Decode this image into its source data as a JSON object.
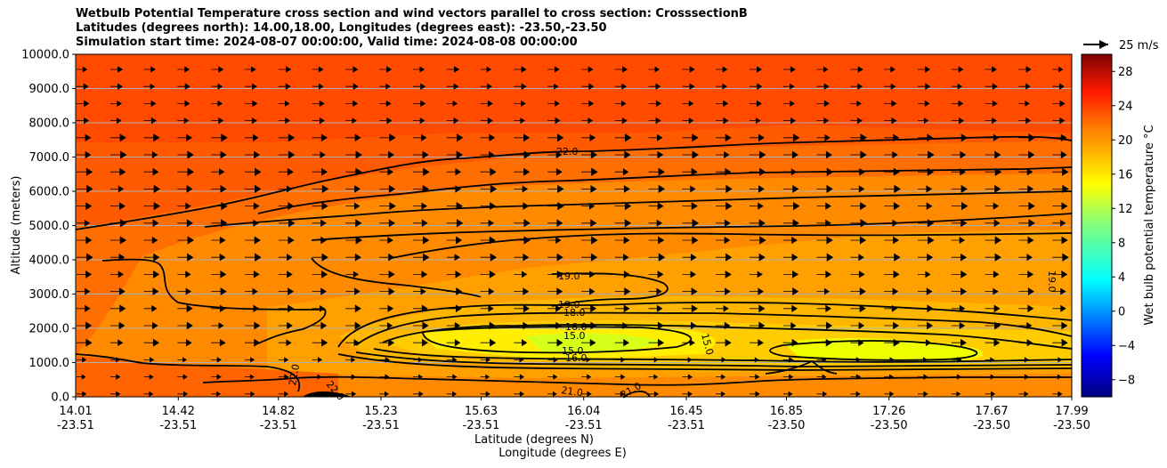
{
  "chart_data": {
    "type": "contourf",
    "title_lines": [
      "Wetbulb Potential Temperature cross section and wind vectors parallel to cross section: CrosssectionB",
      "Latitudes (degrees north): 14.00,18.00, Longitudes (degrees east): -23.50,-23.50",
      "Simulation start time: 2024-08-07 00:00:00, Valid time: 2024-08-08 00:00:00"
    ],
    "xlabel_lat": "Latitude (degrees N)",
    "xlabel_lon": "Longitude (degrees E)",
    "ylabel": "Altitude (meters)",
    "ylim": [
      0,
      10000
    ],
    "yticks": [
      "0.0",
      "1000.0",
      "2000.0",
      "3000.0",
      "4000.0",
      "5000.0",
      "6000.0",
      "7000.0",
      "8000.0",
      "9000.0",
      "10000.0"
    ],
    "xticks_lat": [
      "14.01",
      "14.42",
      "14.82",
      "15.23",
      "15.63",
      "16.04",
      "16.45",
      "16.85",
      "17.26",
      "17.67",
      "17.99"
    ],
    "xticks_lon": [
      "-23.51",
      "-23.51",
      "-23.51",
      "-23.51",
      "-23.51",
      "-23.51",
      "-23.51",
      "-23.50",
      "-23.50",
      "-23.50",
      "-23.50"
    ],
    "xlim": [
      14.01,
      17.99
    ],
    "colorbar": {
      "label": "Wet bulb potential temperature $^\\circ$C",
      "label_text": "Wet bulb potential temperature ",
      "label_unit": "°C",
      "range": [
        -10,
        30
      ],
      "ticks": [
        "−8",
        "−4",
        "0",
        "4",
        "8",
        "12",
        "16",
        "20",
        "24",
        "28"
      ],
      "tick_values": [
        -8,
        -4,
        0,
        4,
        8,
        12,
        16,
        20,
        24,
        28
      ]
    },
    "quiver_key": "25 m/s",
    "contour_labels": [
      "22.0",
      "19.0",
      "19.0",
      "18.0",
      "16.0",
      "15.0",
      "15.0",
      "16.0",
      "21.0",
      "21.0",
      "22.0",
      "22.0",
      "15.0",
      "19.0"
    ],
    "grid": true
  }
}
